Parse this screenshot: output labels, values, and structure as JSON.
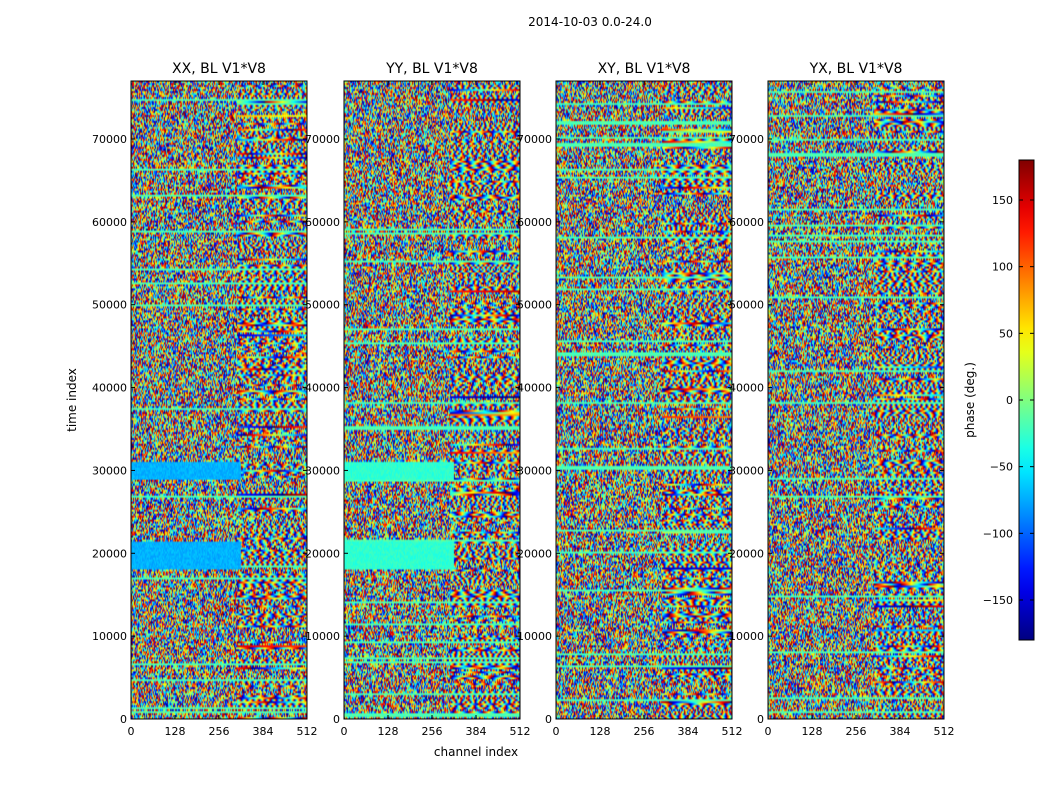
{
  "chart_data": {
    "type": "heatmap",
    "suptitle": "2014-10-03 0.0-24.0",
    "shared_xlabel": "channel index",
    "shared_ylabel": "time index",
    "xlim": [
      0,
      512
    ],
    "ylim": [
      0,
      77000
    ],
    "x_ticks": [
      0,
      128,
      256,
      384,
      512
    ],
    "y_ticks": [
      0,
      10000,
      20000,
      30000,
      40000,
      50000,
      60000,
      70000
    ],
    "panels": [
      {
        "title": "XX, BL V1*V8",
        "polarization": "XX",
        "baseline": "V1*V8"
      },
      {
        "title": "YY, BL V1*V8",
        "polarization": "YY",
        "baseline": "V1*V8"
      },
      {
        "title": "XY, BL V1*V8",
        "polarization": "XY",
        "baseline": "V1*V8"
      },
      {
        "title": "YX, BL V1*V8",
        "polarization": "YX",
        "baseline": "V1*V8"
      }
    ],
    "colorbar": {
      "label": "phase (deg.)",
      "range": [
        -180,
        180
      ],
      "ticks": [
        150,
        100,
        50,
        0,
        -50,
        -100,
        -150
      ],
      "tick_labels": [
        "150",
        "100",
        "50",
        "0",
        "−50",
        "−100",
        "−150"
      ],
      "colormap": "jet"
    }
  }
}
